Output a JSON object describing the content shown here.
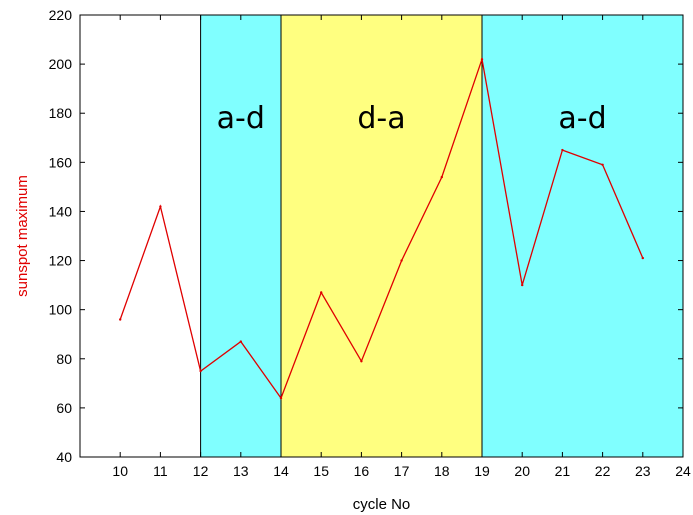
{
  "chart_data": {
    "type": "line",
    "title": "",
    "xlabel": "cycle No",
    "ylabel": "sunspot maximum",
    "xlim": [
      9,
      24
    ],
    "ylim": [
      40,
      220
    ],
    "xticks": [
      10,
      11,
      12,
      13,
      14,
      15,
      16,
      17,
      18,
      19,
      20,
      21,
      22,
      23,
      24
    ],
    "yticks": [
      40,
      60,
      80,
      100,
      120,
      140,
      160,
      180,
      200,
      220
    ],
    "grid": false,
    "series": [
      {
        "color": "#e00000",
        "x": [
          10,
          11,
          12,
          13,
          14,
          15,
          16,
          17,
          18,
          19,
          20,
          21,
          22,
          23
        ],
        "y": [
          96,
          142,
          75,
          87,
          64,
          107,
          79,
          120,
          154,
          202,
          110,
          165,
          159,
          121
        ]
      }
    ],
    "bands": [
      {
        "label": "a-d",
        "x_start": 12,
        "x_end": 14,
        "color": "#80ffff"
      },
      {
        "label": "d-a",
        "x_start": 14,
        "x_end": 19,
        "color": "#ffff80"
      },
      {
        "label": "a-d",
        "x_start": 19,
        "x_end": 24,
        "color": "#80ffff"
      }
    ],
    "ylabel_color": "#e00000"
  }
}
